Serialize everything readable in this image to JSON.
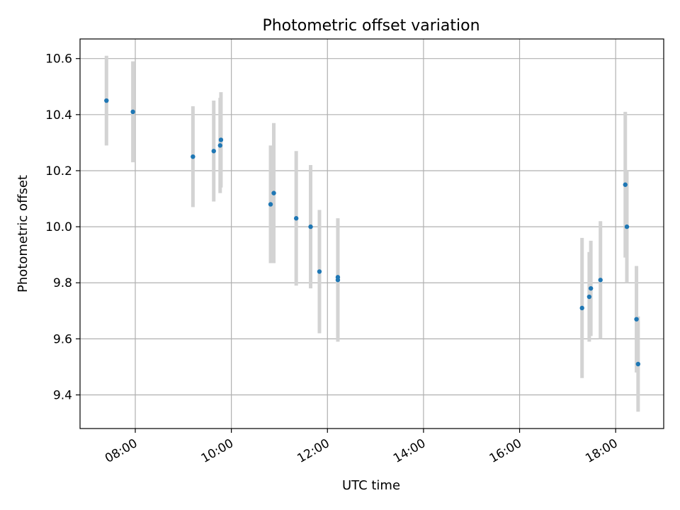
{
  "chart_data": {
    "type": "scatter",
    "title": "Photometric offset variation",
    "xlabel": "UTC time",
    "ylabel": "Photometric offset",
    "grid": true,
    "xlim": [
      "06:51",
      "19:00"
    ],
    "ylim": [
      9.28,
      10.67
    ],
    "x_ticks": [
      "08:00",
      "10:00",
      "12:00",
      "14:00",
      "16:00",
      "18:00"
    ],
    "y_ticks": [
      "9.4",
      "9.6",
      "9.8",
      "10.0",
      "10.2",
      "10.4",
      "10.6"
    ],
    "colors": {
      "points": "#1f77b4",
      "error_bars": "#d3d3d3",
      "grid": "#b0b0b0"
    },
    "series": [
      {
        "points": [
          {
            "x": "07:24",
            "y": 10.45,
            "err": 0.16
          },
          {
            "x": "07:57",
            "y": 10.41,
            "err": 0.18
          },
          {
            "x": "09:12",
            "y": 10.25,
            "err": 0.18
          },
          {
            "x": "09:38",
            "y": 10.27,
            "err": 0.18
          },
          {
            "x": "09:46",
            "y": 10.29,
            "err": 0.17
          },
          {
            "x": "09:47",
            "y": 10.31,
            "err": 0.17
          },
          {
            "x": "10:49",
            "y": 10.08,
            "err": 0.21
          },
          {
            "x": "10:53",
            "y": 10.12,
            "err": 0.25
          },
          {
            "x": "11:21",
            "y": 10.03,
            "err": 0.24
          },
          {
            "x": "11:39",
            "y": 10.0,
            "err": 0.22
          },
          {
            "x": "11:50",
            "y": 9.84,
            "err": 0.22
          },
          {
            "x": "12:13",
            "y": 9.82,
            "err": 0.21
          },
          {
            "x": "12:13",
            "y": 9.81,
            "err": 0.22
          },
          {
            "x": "17:18",
            "y": 9.71,
            "err": 0.25
          },
          {
            "x": "17:27",
            "y": 9.75,
            "err": 0.16
          },
          {
            "x": "17:29",
            "y": 9.78,
            "err": 0.17
          },
          {
            "x": "17:41",
            "y": 9.81,
            "err": 0.21
          },
          {
            "x": "18:12",
            "y": 10.15,
            "err": 0.26
          },
          {
            "x": "18:14",
            "y": 10.0,
            "err": 0.2
          },
          {
            "x": "18:26",
            "y": 9.67,
            "err": 0.19
          },
          {
            "x": "18:28",
            "y": 9.51,
            "err": 0.17
          }
        ]
      }
    ]
  }
}
